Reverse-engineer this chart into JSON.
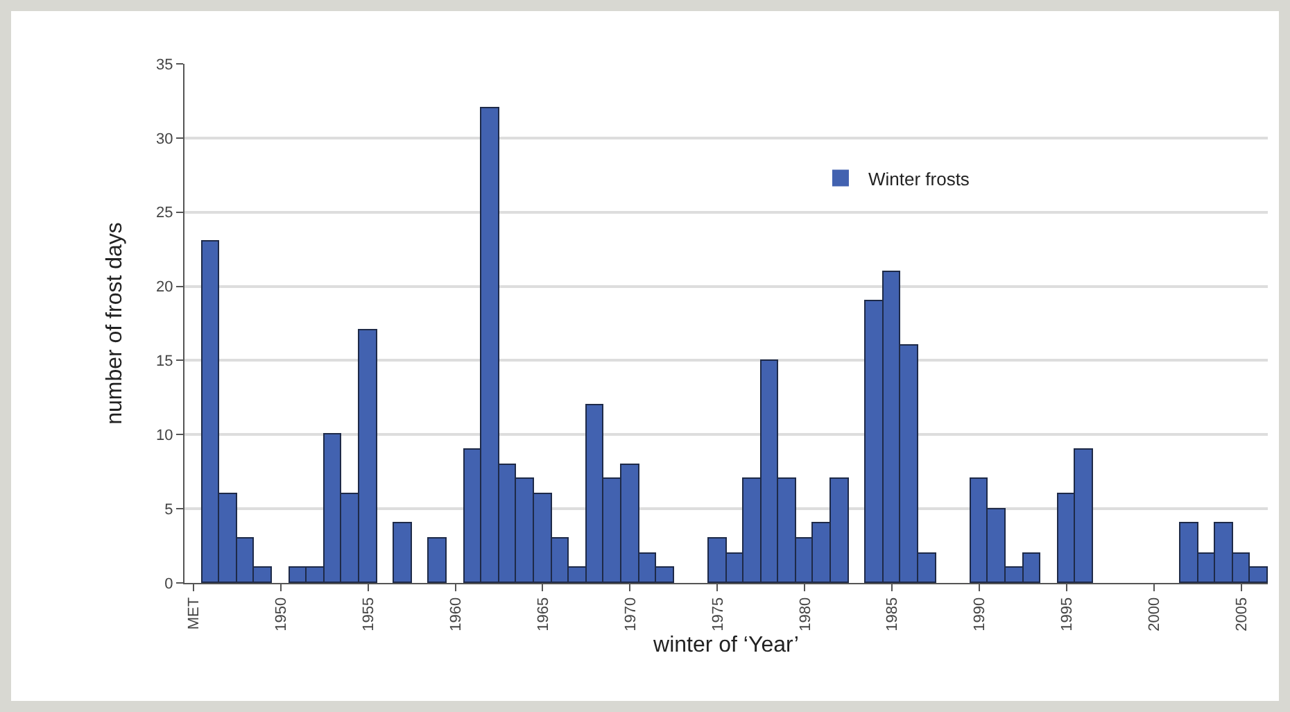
{
  "chart_data": {
    "type": "bar",
    "xlabel": "winter of ‘Year’",
    "ylabel": "number of frost days",
    "categories": [
      "MET",
      null,
      null,
      null,
      null,
      "1950",
      null,
      null,
      null,
      null,
      "1955",
      null,
      null,
      null,
      null,
      "1960",
      null,
      null,
      null,
      null,
      "1965",
      null,
      null,
      null,
      null,
      "1970",
      null,
      null,
      null,
      null,
      "1975",
      null,
      null,
      null,
      null,
      "1980",
      null,
      null,
      null,
      null,
      "1985",
      null,
      null,
      null,
      null,
      "1990",
      null,
      null,
      null,
      null,
      "1995",
      null,
      null,
      null,
      null,
      "2000",
      null,
      null,
      null,
      null,
      "2005",
      null
    ],
    "series": [
      {
        "name": "Winter frosts",
        "color": "#4262b0",
        "values": [
          null,
          23,
          6,
          3,
          1,
          0,
          1,
          1,
          10,
          6,
          17,
          0,
          4,
          0,
          3,
          0,
          9,
          32,
          8,
          7,
          6,
          3,
          1,
          12,
          7,
          8,
          2,
          1,
          0,
          0,
          3,
          2,
          7,
          15,
          7,
          3,
          4,
          7,
          0,
          19,
          21,
          16,
          2,
          0,
          0,
          7,
          5,
          1,
          2,
          0,
          6,
          9,
          0,
          0,
          0,
          0,
          0,
          4,
          2,
          4,
          2,
          1
        ]
      }
    ],
    "ylim": [
      0,
      35
    ],
    "yticks": [
      0,
      5,
      10,
      15,
      20,
      25,
      30,
      35
    ],
    "grid": "y",
    "legend": "top right"
  }
}
